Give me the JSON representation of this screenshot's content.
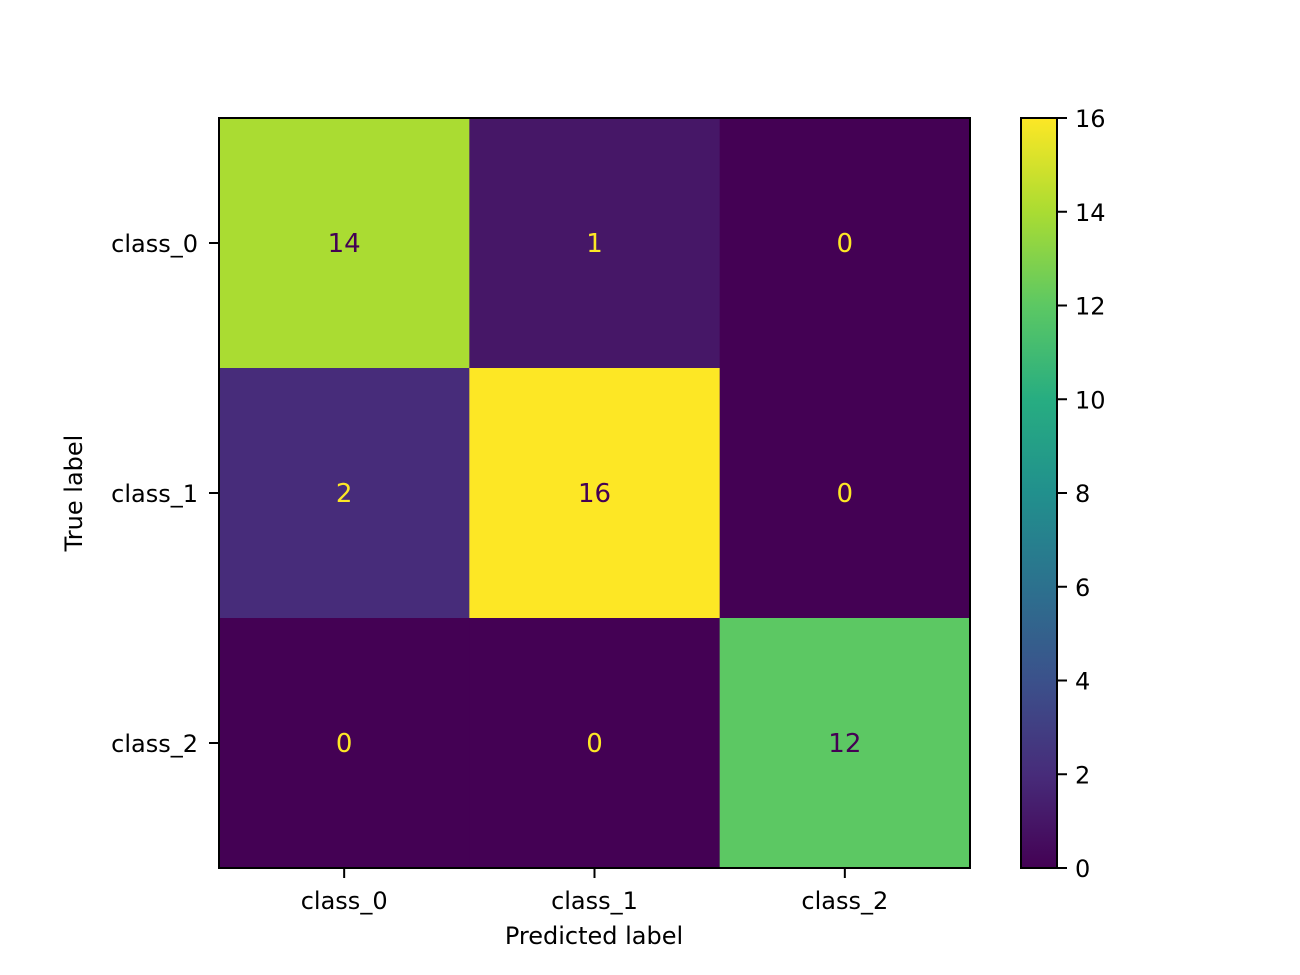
{
  "chart_data": {
    "type": "heatmap",
    "title": "",
    "xlabel": "Predicted label",
    "ylabel": "True label",
    "x_categories": [
      "class_0",
      "class_1",
      "class_2"
    ],
    "y_categories": [
      "class_0",
      "class_1",
      "class_2"
    ],
    "values": [
      [
        14,
        1,
        0
      ],
      [
        2,
        16,
        0
      ],
      [
        0,
        0,
        12
      ]
    ],
    "colormap": "viridis",
    "colorbar": {
      "min": 0,
      "max": 16,
      "ticks": [
        "0",
        "2",
        "4",
        "6",
        "8",
        "10",
        "12",
        "14",
        "16"
      ]
    },
    "grid": false,
    "colors": {
      "text_on_dark": "#fde725",
      "text_on_light": "#440154"
    }
  }
}
